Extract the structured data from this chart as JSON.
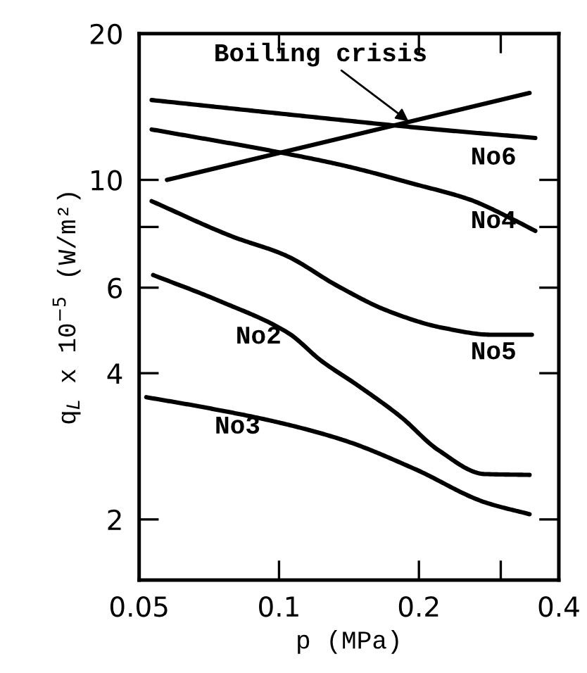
{
  "chart_data": {
    "type": "line",
    "xlabel": "p (MPa)",
    "ylabel": "q$_{L}$ x 10$^{−5}$ (W/m²)",
    "log": "xy",
    "xlim": [
      0.05,
      0.4
    ],
    "xticks": [
      0.05,
      0.1,
      0.2,
      {
        "value": 0.3,
        "label": null
      },
      0.4
    ],
    "ylim": [
      1.5,
      20
    ],
    "yticks": [
      2,
      4,
      6,
      {
        "value": 8,
        "label": null
      },
      10,
      20
    ],
    "grid": false,
    "marker": "none",
    "line_style": "solid",
    "series": [
      {
        "name": "No6",
        "color": "#000000",
        "x": [
          0.0532,
          0.1,
          0.2,
          0.356
        ],
        "values": [
          14.6,
          13.7,
          12.8,
          12.2
        ]
      },
      {
        "color": "#000000",
        "x": [
          0.0574,
          0.346
        ],
        "values": [
          10,
          15.1
        ]
      },
      {
        "name": "No4",
        "color": "#000000",
        "x": [
          0.0532,
          0.1,
          0.138,
          0.196,
          0.258,
          0.318,
          0.356
        ],
        "values": [
          12.7,
          11.4,
          10.7,
          9.8,
          9.1,
          8.3,
          7.85
        ]
      },
      {
        "name": "No5",
        "color": "#000000",
        "x": [
          0.0532,
          0.0795,
          0.103,
          0.134,
          0.171,
          0.225,
          0.287,
          0.35
        ],
        "values": [
          9.04,
          7.64,
          7.0,
          6.04,
          5.38,
          4.96,
          4.8,
          4.8
        ]
      },
      {
        "name": "No2",
        "color": "#000000",
        "x": [
          0.0536,
          0.0742,
          0.105,
          0.123,
          0.148,
          0.183,
          0.22,
          0.277,
          0.346
        ],
        "values": [
          6.37,
          5.64,
          4.83,
          4.25,
          3.77,
          3.25,
          2.78,
          2.48,
          2.47
        ]
      },
      {
        "name": "No3",
        "color": "#000000",
        "x": [
          0.0518,
          0.0693,
          0.098,
          0.138,
          0.196,
          0.277,
          0.346
        ],
        "values": [
          3.57,
          3.4,
          3.18,
          2.91,
          2.54,
          2.17,
          2.05
        ]
      }
    ],
    "annotations": [
      {
        "text": "Boiling crisis",
        "x": 0.19,
        "y": 13.2
      }
    ]
  }
}
